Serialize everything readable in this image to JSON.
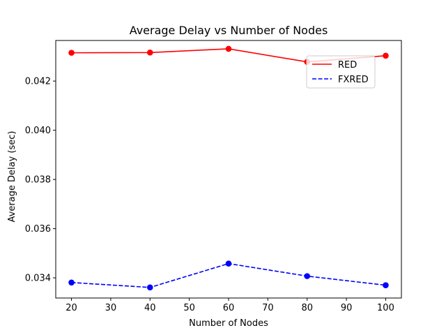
{
  "chart_data": {
    "type": "line",
    "title": "Average Delay vs Number of Nodes",
    "xlabel": "Number of Nodes",
    "ylabel": "Average Delay (sec)",
    "x": [
      20,
      40,
      60,
      80,
      100
    ],
    "xlim": [
      16,
      104
    ],
    "ylim": [
      0.03318,
      0.04365
    ],
    "xticks": [
      20,
      30,
      40,
      50,
      60,
      70,
      80,
      90,
      100
    ],
    "yticks": [
      0.034,
      0.036,
      0.038,
      0.04,
      0.042
    ],
    "xtick_labels": [
      "20",
      "30",
      "40",
      "50",
      "60",
      "70",
      "80",
      "90",
      "100"
    ],
    "ytick_labels": [
      "0.034",
      "0.036",
      "0.038",
      "0.040",
      "0.042"
    ],
    "grid": false,
    "legend_position": "upper-right",
    "series": [
      {
        "name": "RED",
        "values": [
          0.04315,
          0.04316,
          0.04331,
          0.04278,
          0.04303
        ],
        "color": "#ff0000",
        "linestyle": "solid",
        "marker": "circle"
      },
      {
        "name": "FXRED",
        "values": [
          0.03381,
          0.03361,
          0.03458,
          0.03407,
          0.0337
        ],
        "color": "#0000ff",
        "linestyle": "dashed",
        "marker": "circle"
      }
    ]
  }
}
